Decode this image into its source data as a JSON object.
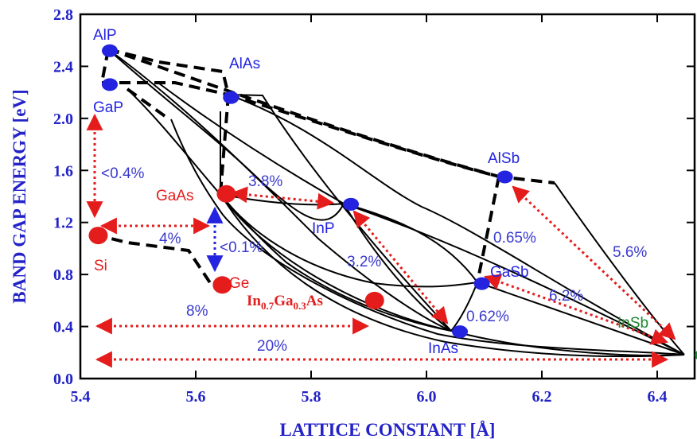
{
  "chart_data": {
    "type": "scatter",
    "xlabel": "LATTICE CONSTANT [Å]",
    "ylabel": "BAND GAP ENERGY [eV]",
    "xlim": [
      5.4,
      6.5
    ],
    "ylim": [
      0.0,
      2.8
    ],
    "x_ticks": [
      "5.4",
      "5.6",
      "5.8",
      "6.0",
      "6.2",
      "6.4"
    ],
    "y_ticks": [
      "0.0",
      "0.4",
      "0.8",
      "1.2",
      "1.6",
      "2.0",
      "2.4",
      "2.8"
    ],
    "colors": {
      "blue": "#2323e0",
      "red": "#e51c1c",
      "green": "#1c8a2e",
      "axis": "#2323c8"
    },
    "materials": [
      {
        "name": "AlP",
        "label": "AlP",
        "x": 5.451,
        "y": 2.52,
        "color": "blue"
      },
      {
        "name": "GaP",
        "label": "GaP",
        "x": 5.451,
        "y": 2.26,
        "color": "blue"
      },
      {
        "name": "AlAs",
        "label": "AlAs",
        "x": 5.661,
        "y": 2.16,
        "color": "blue"
      },
      {
        "name": "GaAs",
        "label": "GaAs",
        "x": 5.653,
        "y": 1.42,
        "color": "red"
      },
      {
        "name": "InP",
        "label": "InP",
        "x": 5.869,
        "y": 1.34,
        "color": "blue"
      },
      {
        "name": "AlSb",
        "label": "AlSb",
        "x": 6.136,
        "y": 1.55,
        "color": "blue"
      },
      {
        "name": "Si",
        "label": "Si",
        "x": 5.431,
        "y": 1.1,
        "color": "red"
      },
      {
        "name": "Ge",
        "label": "Ge",
        "x": 5.646,
        "y": 0.72,
        "color": "red"
      },
      {
        "name": "InGaAs",
        "label": "",
        "x": 5.91,
        "y": 0.6,
        "color": "red"
      },
      {
        "name": "GaSb",
        "label": "GaSb",
        "x": 6.096,
        "y": 0.73,
        "color": "blue"
      },
      {
        "name": "InAs",
        "label": "InAs",
        "x": 6.058,
        "y": 0.36,
        "color": "blue"
      },
      {
        "name": "InSb",
        "label": "InSb",
        "x": 6.479,
        "y": 0.18,
        "color": "green"
      }
    ],
    "ingaas_label": {
      "main1": "In",
      "sub1": "0.7",
      "main2": "Ga",
      "sub2": "0.3",
      "main3": "As"
    },
    "mismatch_labels": [
      "<0.4%",
      "4%",
      "<0.1%",
      "3.8%",
      "3.2%",
      "0.65%",
      "5.6%",
      "6.2%",
      "0.62%",
      "8%",
      "20%"
    ]
  }
}
